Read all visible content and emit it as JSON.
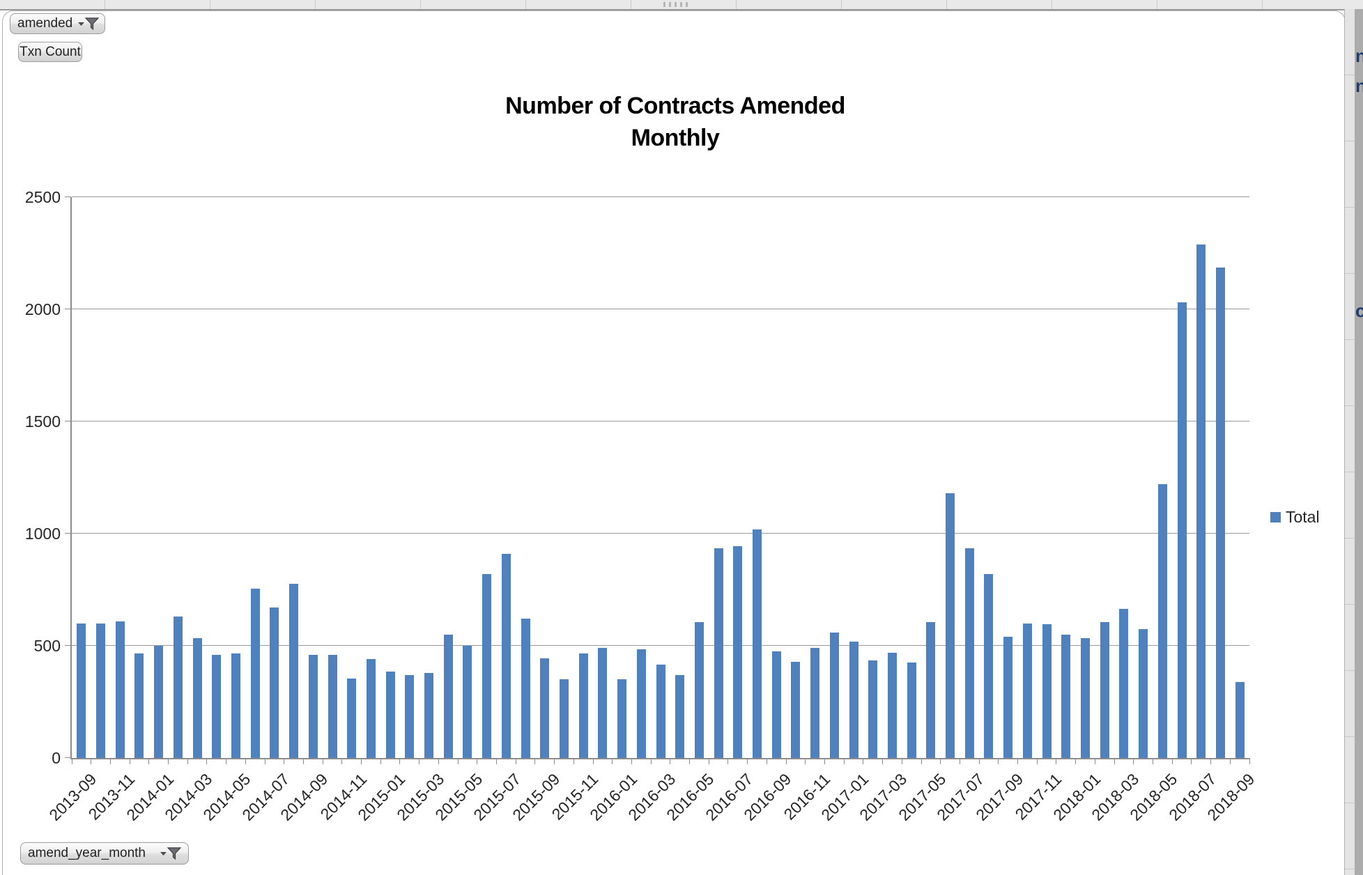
{
  "pivot_filters": {
    "amended": {
      "label": "amended",
      "icon": "filter-funnel-icon"
    },
    "txn_count": {
      "label": "Txn Count"
    },
    "amend_year_month": {
      "label": "amend_year_month",
      "icon": "filter-funnel-icon"
    }
  },
  "sheet": {
    "right_column_fragments": [
      "n",
      "n",
      "c"
    ]
  },
  "chart_data": {
    "type": "bar",
    "title_lines": [
      "Number of Contracts Amended",
      "Monthly"
    ],
    "xlabel": "",
    "ylabel": "",
    "ylim": [
      0,
      2500
    ],
    "yticks": [
      0,
      500,
      1000,
      1500,
      2000,
      2500
    ],
    "grid": true,
    "legend_position": "right",
    "bar_color": "#4E81BD",
    "x_label_every": 2,
    "categories": [
      "2013-09",
      "2013-10",
      "2013-11",
      "2013-12",
      "2014-01",
      "2014-02",
      "2014-03",
      "2014-04",
      "2014-05",
      "2014-06",
      "2014-07",
      "2014-08",
      "2014-09",
      "2014-10",
      "2014-11",
      "2014-12",
      "2015-01",
      "2015-02",
      "2015-03",
      "2015-04",
      "2015-05",
      "2015-06",
      "2015-07",
      "2015-08",
      "2015-09",
      "2015-10",
      "2015-11",
      "2015-12",
      "2016-01",
      "2016-02",
      "2016-03",
      "2016-04",
      "2016-05",
      "2016-06",
      "2016-07",
      "2016-08",
      "2016-09",
      "2016-10",
      "2016-11",
      "2016-12",
      "2017-01",
      "2017-02",
      "2017-03",
      "2017-04",
      "2017-05",
      "2017-06",
      "2017-07",
      "2017-08",
      "2017-09",
      "2017-10",
      "2017-11",
      "2017-12",
      "2018-01",
      "2018-02",
      "2018-03",
      "2018-04",
      "2018-05",
      "2018-06",
      "2018-07",
      "2018-08",
      "2018-09"
    ],
    "series": [
      {
        "name": "Total",
        "values": [
          600,
          600,
          610,
          465,
          500,
          630,
          535,
          460,
          465,
          755,
          670,
          775,
          460,
          460,
          355,
          440,
          385,
          370,
          380,
          550,
          500,
          820,
          910,
          620,
          445,
          350,
          465,
          490,
          350,
          485,
          415,
          370,
          605,
          935,
          945,
          1020,
          475,
          430,
          490,
          560,
          520,
          435,
          470,
          425,
          605,
          1180,
          935,
          820,
          540,
          600,
          595,
          550,
          535,
          605,
          665,
          575,
          1220,
          2030,
          2290,
          2185,
          340
        ]
      }
    ]
  }
}
